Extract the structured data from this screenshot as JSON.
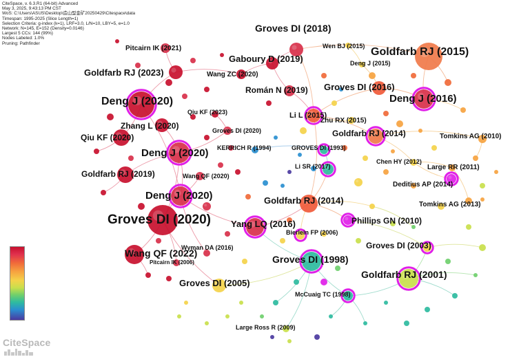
{
  "info": {
    "lines": [
      "CiteSpace, v. 6.3.R1 (64-bit) Advanced",
      "May 3, 2025, 9:43:13 PM CST",
      "WoS: C:\\Users\\ASUS\\Desktop\\造山型金矿20250429\\Citespace\\data",
      "Timespan: 1995-2025 (Slice Length=1)",
      "Selection Criteria: g-index (k=1), LRF=3.0, L/N=10, LBY=5, e=1.0",
      "Network: N=145, E=152 (Density=0.0146)",
      "Largest 5 CCs: 144 (99%)",
      "Nodes Labeled: 1.0%",
      "Pruning: Pathfinder"
    ]
  },
  "logo": {
    "text": "CiteSpace"
  },
  "colors": {
    "ring": "#e020e8",
    "legend_stops": [
      "#c8102e",
      "#f06a3a",
      "#f4d24a",
      "#6fcf6c",
      "#2ebba0",
      "#2a8fd0",
      "#4b3aa0"
    ]
  },
  "labels": [
    "Groves DI (2018)",
    "Goldfarb RJ (2015)",
    "Pitcairn IK (2021)",
    "Wen BJ (2015)",
    "Gaboury D (2019)",
    "Deng J (2015)",
    "Goldfarb RJ (2023)",
    "Wang ZC (2020)",
    "Román N (2019)",
    "Groves DI (2016)",
    "Deng J (2016)",
    "Deng J (2020)",
    "Qiu KF (2023)",
    "Li L (2015)",
    "Zhu RX (2015)",
    "Zhang L (2020)",
    "Groves DI (2020)",
    "Goldfarb RJ (2014)",
    "Qiu KF (2020)",
    "Tomkins AG (2010)",
    "Deng J (2020)",
    "KERRICH R (1994)",
    "GROVES DI (1993)",
    "Chen HY (2012)",
    "Goldfarb RJ (2019)",
    "Wang QF (2020)",
    "Li SR (2017)",
    "Large RR (2011)",
    "Deng J (2020)",
    "Deditius AP (2014)",
    "Goldfarb RJ (2014)",
    "Tomkins AG (2013)",
    "Groves DI (2020)",
    "Phillips GN (2010)",
    "Yang LQ (2016)",
    "Bierlein FP (2006)",
    "Groves DI (2003)",
    "Wang QF (2022)",
    "Wyman DA (2016)",
    "Pitcairn IK (2006)",
    "Groves DI (1998)",
    "Goldfarb RJ (2001)",
    "Groves DI (2005)",
    "McCuaig TC (1998)",
    "Large Ross R (2009)"
  ]
}
